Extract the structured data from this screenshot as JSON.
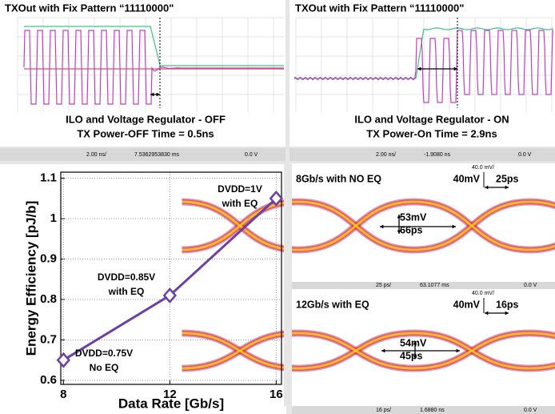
{
  "scopes": [
    {
      "title": "TXOut with Fix Pattern “11110000\"",
      "captions": [
        "ILO and Voltage Regulator - OFF",
        "TX Power-OFF Time = 0.5ns"
      ],
      "toolbar": [
        "2.00 ns/",
        "7.5362953830 ms",
        "0.0 V"
      ]
    },
    {
      "title": "TXOut with Fix Pattern “11110000\"",
      "captions": [
        "ILO and Voltage Regulator - ON",
        "TX Power-On Time = 2.9ns"
      ],
      "toolbar": [
        "2.00 ns/",
        "-1.9080 ns",
        "0.0 V"
      ]
    }
  ],
  "eyes": [
    {
      "header": "40.0 mV/",
      "title": "8Gb/s with NO EQ",
      "scale": [
        "40mV",
        "25ps"
      ],
      "opening": [
        "53mV",
        "66ps"
      ],
      "toolbar": [
        "25 ps/",
        "63.1077 ms",
        "0.0 V"
      ]
    },
    {
      "header": "40.0 mV/",
      "title": "12Gb/s with EQ",
      "scale": [
        "40mV",
        "16ps"
      ],
      "opening": [
        "54mV",
        "45ps"
      ],
      "toolbar": [
        "16 ps/",
        "1.6880 ns",
        "0.0 V"
      ]
    }
  ],
  "chart_data": {
    "type": "line",
    "x_label": "Data Rate [Gb/s]",
    "y_label": "Energy Efficiency [pJ/b]",
    "x": [
      8,
      12,
      16
    ],
    "values": [
      0.65,
      0.81,
      1.05
    ],
    "color": "#6b3fa6",
    "xlim": [
      7.9,
      16.2
    ],
    "xticks": [
      8,
      12,
      16
    ],
    "ylim": [
      0.59,
      1.115
    ],
    "yticks": [
      0.6,
      0.7,
      0.8,
      0.9,
      1,
      1.1
    ],
    "grid": true,
    "annotations": [
      [
        "DVDD=0.75V",
        "No EQ"
      ],
      [
        "DVDD=0.85V",
        "with EQ"
      ],
      [
        "DVDD=1V",
        "with EQ"
      ]
    ]
  }
}
